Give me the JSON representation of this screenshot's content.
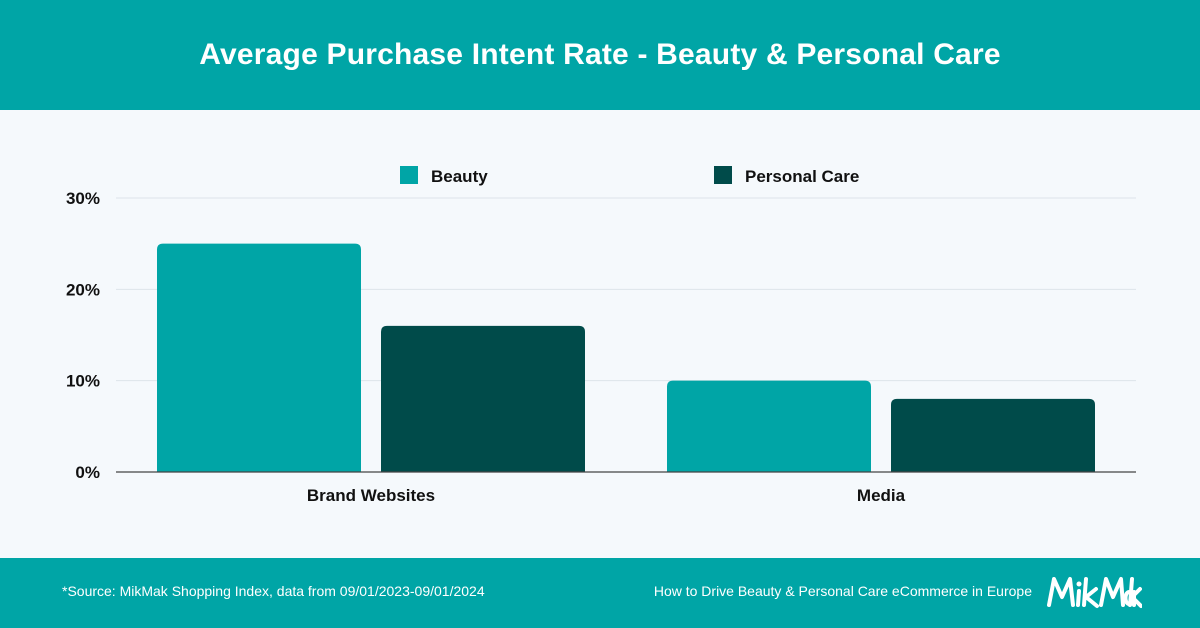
{
  "header": {
    "title": "Average Purchase Intent Rate - Beauty & Personal Care"
  },
  "footer": {
    "source": "*Source: MikMak Shopping Index, data from 09/01/2023-09/01/2024",
    "reference": "How to Drive Beauty & Personal Care eCommerce in Europe",
    "logo_text": "MikMak"
  },
  "colors": {
    "header_bg": "#00a5a6",
    "beauty": "#00a5a6",
    "personal_care": "#004b4a"
  },
  "chart_data": {
    "type": "bar",
    "categories": [
      "Brand Websites",
      "Media"
    ],
    "series": [
      {
        "name": "Beauty",
        "values": [
          25,
          10
        ],
        "color": "#00a5a6"
      },
      {
        "name": "Personal Care",
        "values": [
          16,
          8
        ],
        "color": "#004b4a"
      }
    ],
    "y_ticks": [
      "0%",
      "10%",
      "20%",
      "30%"
    ],
    "y_tick_values": [
      0,
      10,
      20,
      30
    ],
    "ylim": [
      0,
      30
    ],
    "grid": true,
    "legend_position": "top-center"
  }
}
